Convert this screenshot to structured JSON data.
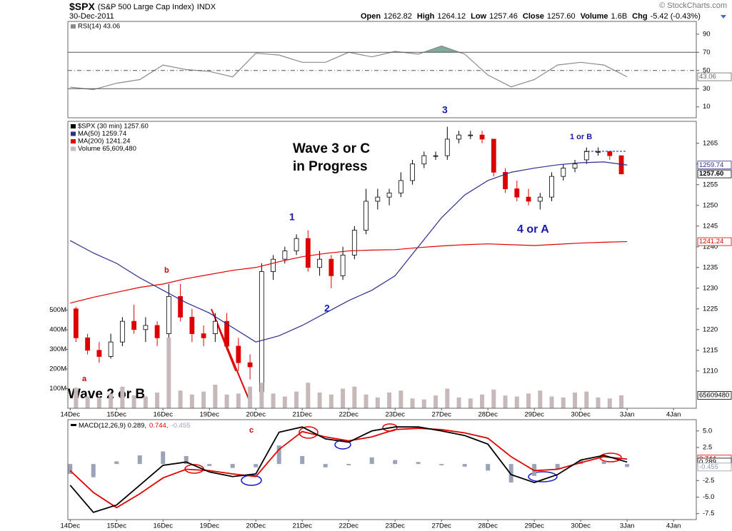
{
  "header": {
    "symbol": "$SPX",
    "name": "(S&P 500 Large Cap Index)",
    "exchange": "INDX",
    "date": "30-Dec-2011",
    "credit": "© StockCharts.com",
    "quote": [
      {
        "label": "Open",
        "value": "1262.82"
      },
      {
        "label": "High",
        "value": "1264.12"
      },
      {
        "label": "Low",
        "value": "1257.46"
      },
      {
        "label": "Close",
        "value": "1257.60"
      },
      {
        "label": "Volume",
        "value": "1.6B"
      },
      {
        "label": "Chg",
        "value": "-5.42 (-0.43%)"
      }
    ]
  },
  "chart_data": [
    {
      "type": "line",
      "legend": "stacked",
      "xlim": [
        -0.05,
        13.49
      ],
      "ylim": [
        -2,
        104
      ],
      "yticks": [
        10,
        30,
        50,
        70,
        90
      ],
      "grid": false,
      "levels": [
        {
          "value": 70,
          "style": "solid",
          "fill": "above"
        },
        {
          "value": 50,
          "style": "dashdot"
        },
        {
          "value": 30,
          "style": "solid",
          "fill": "below"
        }
      ],
      "fill_color": "#7fab9c",
      "series": [
        {
          "name": "RSI(14) 43.06",
          "color": "#8a8a8a",
          "x": [
            0,
            0.5,
            1,
            1.5,
            2,
            2.5,
            3,
            3.5,
            4,
            4.5,
            5,
            5.5,
            6,
            6.5,
            7,
            7.5,
            8,
            8.5,
            9,
            9.5,
            10,
            10.5,
            11,
            11.5,
            12
          ],
          "values": [
            31.7,
            29,
            36,
            40,
            56,
            51,
            49,
            43,
            69,
            67,
            59,
            59,
            70,
            65,
            71,
            68,
            77,
            68,
            45,
            32,
            40,
            56,
            59,
            56,
            43.06
          ]
        }
      ],
      "tags": [
        {
          "value": 43.06,
          "label": "43.06",
          "color": "#666666"
        }
      ]
    },
    {
      "type": "candlestick",
      "legend": "stacked",
      "xlim": [
        -0.05,
        13.49
      ],
      "ylim": [
        1201,
        1270.3
      ],
      "yticks": [
        1210,
        1215,
        1220,
        1225,
        1230,
        1235,
        1240,
        1245,
        1250,
        1255,
        1260,
        1265
      ],
      "y2lim": [
        0,
        1462000000
      ],
      "y2ticks": [
        {
          "value": 100000000,
          "label": "100M"
        },
        {
          "value": 200000000,
          "label": "200M"
        },
        {
          "value": 300000000,
          "label": "300M"
        },
        {
          "value": 400000000,
          "label": "400M"
        },
        {
          "value": 500000000,
          "label": "500M"
        }
      ],
      "xticks": [
        {
          "value": 0,
          "label": "14Dec"
        },
        {
          "value": 1,
          "label": "15Dec"
        },
        {
          "value": 2,
          "label": "16Dec"
        },
        {
          "value": 3,
          "label": "19Dec"
        },
        {
          "value": 4,
          "label": "20Dec"
        },
        {
          "value": 5,
          "label": "21Dec"
        },
        {
          "value": 6,
          "label": "22Dec"
        },
        {
          "value": 7,
          "label": "23Dec"
        },
        {
          "value": 8,
          "label": "27Dec"
        },
        {
          "value": 9,
          "label": "28Dec"
        },
        {
          "value": 10,
          "label": "29Dec"
        },
        {
          "value": 11,
          "label": "30Dec"
        },
        {
          "value": 12,
          "label": "3Jan"
        },
        {
          "value": 13,
          "label": "4Jan"
        }
      ],
      "grid": false,
      "series": [
        {
          "name": "$SPX (30 min) 1257.60",
          "color": "#000000",
          "color_up": "#000000",
          "color_down": "#dd0000",
          "x": [
            0.125,
            0.375,
            0.625,
            0.875,
            1.125,
            1.375,
            1.625,
            1.875,
            2.125,
            2.375,
            2.625,
            2.875,
            3.125,
            3.375,
            3.625,
            3.875,
            4.125,
            4.375,
            4.625,
            4.875,
            5.125,
            5.375,
            5.625,
            5.875,
            6.125,
            6.375,
            6.625,
            6.875,
            7.125,
            7.375,
            7.625,
            7.875,
            8.125,
            8.375,
            8.625,
            8.875,
            9.125,
            9.375,
            9.625,
            9.875,
            10.125,
            10.375,
            10.625,
            10.875,
            11.125,
            11.375,
            11.625,
            11.875
          ],
          "open": [
            1225,
            1218,
            1215,
            1213.5,
            1217,
            1222,
            1220,
            1221,
            1219,
            1228,
            1223,
            1219,
            1219,
            1222,
            1216,
            1212,
            1205,
            1234,
            1237,
            1239,
            1242,
            1235,
            1237,
            1233,
            1238,
            1244,
            1251,
            1252,
            1253,
            1256,
            1260,
            1262,
            1262,
            1266,
            1267,
            1267,
            1266,
            1258,
            1254,
            1252,
            1251,
            1252,
            1257,
            1259,
            1261,
            1263,
            1263,
            1262
          ],
          "high": [
            1225.5,
            1219,
            1217,
            1219,
            1223,
            1226,
            1223,
            1222,
            1231,
            1231,
            1225,
            1221,
            1224,
            1224,
            1218,
            1214,
            1236,
            1238,
            1240,
            1243,
            1244,
            1239,
            1238,
            1240,
            1245,
            1254,
            1254,
            1254,
            1258,
            1261,
            1263,
            1263,
            1269,
            1268,
            1268,
            1268,
            1266,
            1259,
            1256,
            1254,
            1253,
            1258,
            1260,
            1261,
            1264,
            1264,
            1263,
            1262
          ],
          "low": [
            1217,
            1214,
            1212,
            1213,
            1216,
            1219,
            1217,
            1216,
            1218,
            1222,
            1217,
            1216,
            1217,
            1215,
            1210,
            1208,
            1203,
            1232,
            1236,
            1238,
            1234,
            1233,
            1230,
            1232,
            1237,
            1243,
            1249,
            1250,
            1252,
            1255,
            1259,
            1261,
            1261,
            1265,
            1266,
            1265,
            1257,
            1253,
            1251,
            1250,
            1249,
            1251,
            1256,
            1258,
            1260,
            1262,
            1261,
            1257.5
          ],
          "close": [
            1218,
            1215,
            1213.5,
            1217,
            1222,
            1220,
            1221,
            1218,
            1228,
            1223,
            1219,
            1218,
            1222,
            1216,
            1212,
            1211,
            1234,
            1237,
            1239,
            1242,
            1235,
            1237,
            1233,
            1238,
            1244,
            1251,
            1252,
            1253,
            1256,
            1260,
            1262,
            1262,
            1266,
            1267,
            1267,
            1266,
            1258,
            1254,
            1252,
            1251,
            1252,
            1257,
            1259,
            1260,
            1263,
            1263,
            1262,
            1257.6
          ]
        },
        {
          "name": "MA(50) 1259.74",
          "color": "#2b2f8f",
          "x": [
            0,
            0.5,
            1,
            1.5,
            2,
            2.5,
            3,
            3.5,
            4,
            4.5,
            5,
            5.5,
            6,
            6.5,
            7,
            7.5,
            8,
            8.5,
            9,
            9.5,
            10,
            10.5,
            11,
            11.5,
            12
          ],
          "values": [
            1241.5,
            1238.5,
            1236,
            1232.5,
            1229.5,
            1226.5,
            1224,
            1220.5,
            1217,
            1218.5,
            1221,
            1224,
            1227,
            1229.5,
            1233,
            1240,
            1247,
            1252.5,
            1256,
            1258,
            1259,
            1259.8,
            1260.3,
            1260.5,
            1259.74
          ]
        },
        {
          "name": "MA(200) 1241.24",
          "color": "#e00000",
          "x": [
            0,
            0.5,
            1,
            1.5,
            2,
            2.5,
            3,
            3.5,
            4,
            4.5,
            5,
            5.5,
            6,
            6.5,
            7,
            7.5,
            8,
            8.5,
            9,
            9.5,
            10,
            10.5,
            11,
            11.5,
            12
          ],
          "values": [
            1226.4,
            1227.8,
            1229,
            1230.2,
            1231,
            1232.3,
            1233.3,
            1234.3,
            1235,
            1236.4,
            1237.6,
            1238.4,
            1239,
            1239.2,
            1239.3,
            1239.8,
            1240.2,
            1240.5,
            1240.7,
            1240.5,
            1240.3,
            1240.6,
            1240.9,
            1241.1,
            1241.24
          ]
        },
        {
          "name": "Volume 65,609,480",
          "color": "#c7b9b9",
          "style": "bar",
          "axis": "y2",
          "x": [
            0.125,
            0.375,
            0.625,
            0.875,
            1.125,
            1.375,
            1.625,
            1.875,
            2.125,
            2.375,
            2.625,
            2.875,
            3.125,
            3.375,
            3.625,
            3.875,
            4.125,
            4.375,
            4.625,
            4.875,
            5.125,
            5.375,
            5.625,
            5.875,
            6.125,
            6.375,
            6.625,
            6.875,
            7.125,
            7.375,
            7.625,
            7.875,
            8.125,
            8.375,
            8.625,
            8.875,
            9.125,
            9.375,
            9.625,
            9.875,
            10.125,
            10.375,
            10.625,
            10.875,
            11.125,
            11.375,
            11.625,
            11.875
          ],
          "values": [
            105000000,
            60000000,
            55000000,
            75000000,
            110000000,
            65000000,
            60000000,
            80000000,
            360000000,
            90000000,
            70000000,
            85000000,
            120000000,
            70000000,
            75000000,
            110000000,
            130000000,
            75000000,
            60000000,
            85000000,
            130000000,
            80000000,
            70000000,
            100000000,
            110000000,
            70000000,
            55000000,
            80000000,
            90000000,
            50000000,
            45000000,
            65000000,
            100000000,
            55000000,
            50000000,
            70000000,
            95000000,
            65000000,
            60000000,
            75000000,
            90000000,
            60000000,
            55000000,
            80000000,
            85000000,
            55000000,
            50000000,
            65609480
          ]
        }
      ],
      "tags": [
        {
          "value": 1259.74,
          "label": "1259.74",
          "color": "#2b2f8f"
        },
        {
          "value": 1257.6,
          "label": "1257.60",
          "color": "#000000",
          "bold": true
        },
        {
          "value": 1241.24,
          "label": "1241.24",
          "color": "#e00000"
        },
        {
          "value": 65609480,
          "label": "65609480",
          "color": "#000000",
          "axis": "y2"
        }
      ],
      "annotations": [
        "Wave 3 or C",
        "in Progress",
        "Wave 2 or B",
        "1",
        "2",
        "3",
        "4 or A",
        "1 or B",
        "a",
        "b",
        "c"
      ]
    },
    {
      "type": "line",
      "legend": "inline",
      "xlim": [
        -0.05,
        13.49
      ],
      "ylim": [
        -8.4,
        6.7
      ],
      "yticks": [
        {
          "value": 5,
          "label": "5.0"
        },
        2.5,
        -2.5,
        {
          "value": -5,
          "label": "-5.0"
        },
        -7.5
      ],
      "xticks": [
        {
          "value": 0,
          "label": "14Dec"
        },
        {
          "value": 1,
          "label": "15Dec"
        },
        {
          "value": 2,
          "label": "16Dec"
        },
        {
          "value": 3,
          "label": "19Dec"
        },
        {
          "value": 4,
          "label": "20Dec"
        },
        {
          "value": 5,
          "label": "21Dec"
        },
        {
          "value": 6,
          "label": "22Dec"
        },
        {
          "value": 7,
          "label": "23Dec"
        },
        {
          "value": 8,
          "label": "27Dec"
        },
        {
          "value": 9,
          "label": "28Dec"
        },
        {
          "value": 10,
          "label": "29Dec"
        },
        {
          "value": 11,
          "label": "30Dec"
        },
        {
          "value": 12,
          "label": "3Jan"
        },
        {
          "value": 13,
          "label": "4Jan"
        }
      ],
      "grid": false,
      "series": [
        {
          "name": "-0.455",
          "color": "#9aa3b8",
          "style": "bar",
          "x": [
            0,
            0.5,
            1,
            1.5,
            2,
            2.5,
            3,
            3.5,
            4,
            4.5,
            5,
            5.5,
            6,
            6.5,
            7,
            7.5,
            8,
            8.5,
            9,
            9.5,
            10,
            10.5,
            11,
            11.5,
            12
          ],
          "values": [
            -1.5,
            -2,
            0.4,
            1.3,
            1.9,
            1.2,
            -0.3,
            -0.6,
            -0.5,
            2.8,
            1.2,
            -0.5,
            -0.2,
            1,
            0.6,
            0.3,
            -0.2,
            -0.4,
            -1,
            -2.8,
            -1.8,
            -0.8,
            0.5,
            0.4,
            -0.455
          ]
        },
        {
          "name": "0.744,",
          "color": "#e00000",
          "x": [
            0,
            0.5,
            1,
            1.5,
            2,
            2.5,
            3,
            3.5,
            4,
            4.5,
            5,
            5.5,
            6,
            6.5,
            7,
            7.5,
            8,
            8.5,
            9,
            9.5,
            10,
            10.5,
            11,
            11.5,
            12
          ],
          "values": [
            -1,
            -4.3,
            -6.6,
            -4.5,
            -2.1,
            -0.8,
            -1,
            -1.5,
            -1.9,
            2.2,
            4.9,
            4.1,
            3.5,
            4.1,
            5.2,
            5.4,
            5.2,
            4.7,
            3.9,
            1.1,
            -1,
            -0.8,
            0.2,
            1.1,
            0.744
          ]
        },
        {
          "name": "MACD(12,26,9) 0.289,",
          "color": "#000000",
          "x": [
            0,
            0.5,
            1,
            1.5,
            2,
            2.5,
            3,
            3.5,
            4,
            4.5,
            5,
            5.5,
            6,
            6.5,
            7,
            7.5,
            8,
            8.5,
            9,
            9.5,
            10,
            10.5,
            11,
            11.5,
            12
          ],
          "values": [
            -3.2,
            -7.3,
            -6.2,
            -3.2,
            -0.2,
            0.3,
            -1.2,
            -1.9,
            -1.5,
            4.8,
            5.6,
            3.8,
            3.3,
            5,
            5.6,
            5.6,
            5,
            4.3,
            3,
            -1.6,
            -2.8,
            -1.6,
            0.6,
            1.3,
            0.289
          ]
        }
      ],
      "tags": [
        {
          "value": 0.744,
          "label": "0.744",
          "color": "#e00000"
        },
        {
          "value": 0.289,
          "label": "0.289",
          "color": "#000000"
        },
        {
          "value": -0.455,
          "label": "-0.455",
          "color": "#8f99b0"
        }
      ]
    }
  ]
}
